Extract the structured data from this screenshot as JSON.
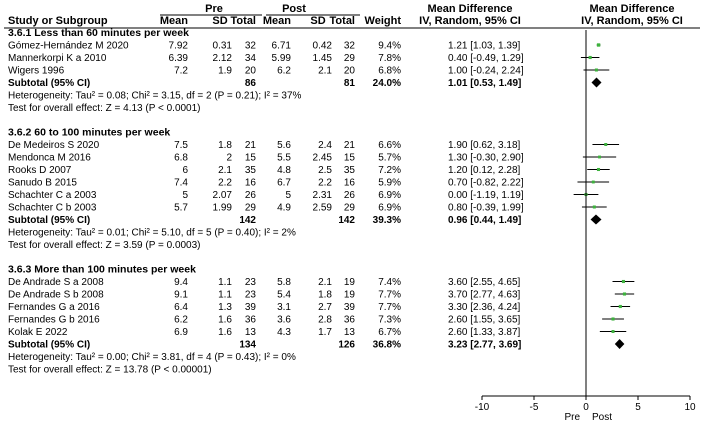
{
  "header": {
    "pre_label": "Pre",
    "post_label": "Post",
    "col_study": "Study or Subgroup",
    "col_mean_pre": "Mean",
    "col_sd_pre": "SD",
    "col_total_pre": "Total",
    "col_mean_post": "Mean",
    "col_sd_post": "SD",
    "col_total_post": "Total",
    "col_weight": "Weight",
    "col_md": "Mean Difference",
    "col_md_method": "IV, Random, 95% CI",
    "plot_md": "Mean Difference",
    "plot_md_method": "IV, Random, 95% CI"
  },
  "chart_data": {
    "type": "forest",
    "xlim": [
      -10,
      10
    ],
    "xticks": [
      "-10",
      "-5",
      "0",
      "5",
      "10"
    ],
    "xlabel_left": "Pre",
    "xlabel_right": "Post",
    "colors": {
      "marker": "#3db23d",
      "diamond": "#000000",
      "line": "#000000"
    },
    "subgroups": [
      {
        "title": "3.6.1 Less than 60 minutes per week",
        "studies": [
          {
            "name": "Gómez-Hernández M 2020",
            "mean_pre": "7.92",
            "sd_pre": "0.31",
            "n_pre": "32",
            "mean_post": "6.71",
            "sd_post": "0.42",
            "n_post": "32",
            "weight": "9.4%",
            "ci_text": "1.21 [1.03, 1.39]",
            "md": 1.21,
            "lo": 1.03,
            "hi": 1.39
          },
          {
            "name": "Mannerkorpi K a 2010",
            "mean_pre": "6.39",
            "sd_pre": "2.12",
            "n_pre": "34",
            "mean_post": "5.99",
            "sd_post": "1.45",
            "n_post": "29",
            "weight": "7.8%",
            "ci_text": "0.40 [-0.49, 1.29]",
            "md": 0.4,
            "lo": -0.49,
            "hi": 1.29
          },
          {
            "name": "Wigers 1996",
            "mean_pre": "7.2",
            "sd_pre": "1.9",
            "n_pre": "20",
            "mean_post": "6.2",
            "sd_post": "2.1",
            "n_post": "20",
            "weight": "6.8%",
            "ci_text": "1.00 [-0.24, 2.24]",
            "md": 1.0,
            "lo": -0.24,
            "hi": 2.24
          }
        ],
        "subtotal": {
          "label": "Subtotal (95% CI)",
          "n_pre": "86",
          "n_post": "81",
          "weight": "24.0%",
          "ci_text": "1.01 [0.53, 1.49]",
          "md": 1.01,
          "lo": 0.53,
          "hi": 1.49
        },
        "heterogeneity": "Heterogeneity: Tau² = 0.08; Chi² = 3.15, df = 2 (P = 0.21); I² = 37%",
        "overall": "Test for overall effect: Z = 4.13 (P < 0.0001)"
      },
      {
        "title": "3.6.2 60 to 100 minutes per week",
        "studies": [
          {
            "name": "De Medeiros S 2020",
            "mean_pre": "7.5",
            "sd_pre": "1.8",
            "n_pre": "21",
            "mean_post": "5.6",
            "sd_post": "2.4",
            "n_post": "21",
            "weight": "6.6%",
            "ci_text": "1.90 [0.62, 3.18]",
            "md": 1.9,
            "lo": 0.62,
            "hi": 3.18
          },
          {
            "name": "Mendonca M 2016",
            "mean_pre": "6.8",
            "sd_pre": "2",
            "n_pre": "15",
            "mean_post": "5.5",
            "sd_post": "2.45",
            "n_post": "15",
            "weight": "5.7%",
            "ci_text": "1.30 [-0.30, 2.90]",
            "md": 1.3,
            "lo": -0.3,
            "hi": 2.9
          },
          {
            "name": "Rooks D 2007",
            "mean_pre": "6",
            "sd_pre": "2.1",
            "n_pre": "35",
            "mean_post": "4.8",
            "sd_post": "2.5",
            "n_post": "35",
            "weight": "7.2%",
            "ci_text": "1.20 [0.12, 2.28]",
            "md": 1.2,
            "lo": 0.12,
            "hi": 2.28
          },
          {
            "name": "Sanudo B 2015",
            "mean_pre": "7.4",
            "sd_pre": "2.2",
            "n_pre": "16",
            "mean_post": "6.7",
            "sd_post": "2.2",
            "n_post": "16",
            "weight": "5.9%",
            "ci_text": "0.70 [-0.82, 2.22]",
            "md": 0.7,
            "lo": -0.82,
            "hi": 2.22
          },
          {
            "name": "Schachter C a 2003",
            "mean_pre": "5",
            "sd_pre": "2.07",
            "n_pre": "26",
            "mean_post": "5",
            "sd_post": "2.31",
            "n_post": "26",
            "weight": "6.9%",
            "ci_text": "0.00 [-1.19, 1.19]",
            "md": 0.0,
            "lo": -1.19,
            "hi": 1.19
          },
          {
            "name": "Schachter C b 2003",
            "mean_pre": "5.7",
            "sd_pre": "1.99",
            "n_pre": "29",
            "mean_post": "4.9",
            "sd_post": "2.59",
            "n_post": "29",
            "weight": "6.9%",
            "ci_text": "0.80 [-0.39, 1.99]",
            "md": 0.8,
            "lo": -0.39,
            "hi": 1.99
          }
        ],
        "subtotal": {
          "label": "Subtotal (95% CI)",
          "n_pre": "142",
          "n_post": "142",
          "weight": "39.3%",
          "ci_text": "0.96 [0.44, 1.49]",
          "md": 0.96,
          "lo": 0.44,
          "hi": 1.49
        },
        "heterogeneity": "Heterogeneity: Tau² = 0.01; Chi² = 5.10, df = 5 (P = 0.40); I² = 2%",
        "overall": "Test for overall effect: Z = 3.59 (P = 0.0003)"
      },
      {
        "title": "3.6.3 More than 100 minutes per week",
        "studies": [
          {
            "name": "De Andrade S a 2008",
            "mean_pre": "9.4",
            "sd_pre": "1.1",
            "n_pre": "23",
            "mean_post": "5.8",
            "sd_post": "2.1",
            "n_post": "19",
            "weight": "7.4%",
            "ci_text": "3.60 [2.55, 4.65]",
            "md": 3.6,
            "lo": 2.55,
            "hi": 4.65
          },
          {
            "name": "De Andrade S b 2008",
            "mean_pre": "9.1",
            "sd_pre": "1.1",
            "n_pre": "23",
            "mean_post": "5.4",
            "sd_post": "1.8",
            "n_post": "19",
            "weight": "7.7%",
            "ci_text": "3.70 [2.77, 4.63]",
            "md": 3.7,
            "lo": 2.77,
            "hi": 4.63
          },
          {
            "name": "Fernandes G a 2016",
            "mean_pre": "6.4",
            "sd_pre": "1.3",
            "n_pre": "39",
            "mean_post": "3.1",
            "sd_post": "2.7",
            "n_post": "39",
            "weight": "7.7%",
            "ci_text": "3.30 [2.36, 4.24]",
            "md": 3.3,
            "lo": 2.36,
            "hi": 4.24
          },
          {
            "name": "Fernandes G b 2016",
            "mean_pre": "6.2",
            "sd_pre": "1.6",
            "n_pre": "36",
            "mean_post": "3.6",
            "sd_post": "2.8",
            "n_post": "36",
            "weight": "7.3%",
            "ci_text": "2.60 [1.55, 3.65]",
            "md": 2.6,
            "lo": 1.55,
            "hi": 3.65
          },
          {
            "name": "Kolak E 2022",
            "mean_pre": "6.9",
            "sd_pre": "1.6",
            "n_pre": "13",
            "mean_post": "4.3",
            "sd_post": "1.7",
            "n_post": "13",
            "weight": "6.7%",
            "ci_text": "2.60 [1.33, 3.87]",
            "md": 2.6,
            "lo": 1.33,
            "hi": 3.87
          }
        ],
        "subtotal": {
          "label": "Subtotal (95% CI)",
          "n_pre": "134",
          "n_post": "126",
          "weight": "36.8%",
          "ci_text": "3.23 [2.77, 3.69]",
          "md": 3.23,
          "lo": 2.77,
          "hi": 3.69
        },
        "heterogeneity": "Heterogeneity: Tau² = 0.00; Chi² = 3.81, df = 4 (P = 0.43); I² = 0%",
        "overall": "Test for overall effect: Z = 13.78 (P < 0.00001)"
      }
    ]
  }
}
